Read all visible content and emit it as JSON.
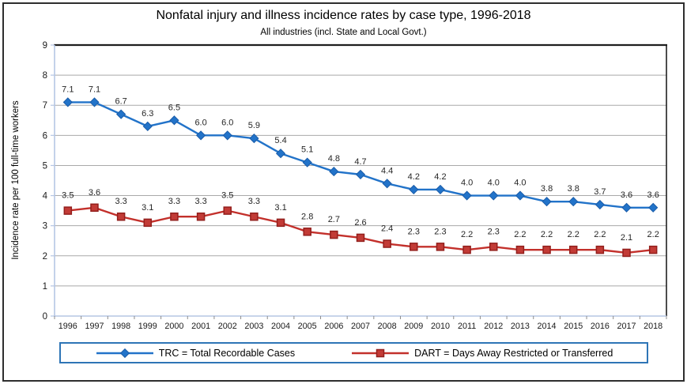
{
  "title": "Nonfatal injury and illness incidence rates by case type, 1996-2018",
  "subtitle": "All industries (incl. State and Local Govt.)",
  "chart_data": {
    "type": "line",
    "categories": [
      "1996",
      "1997",
      "1998",
      "1999",
      "2000",
      "2001",
      "2002",
      "2003",
      "2004",
      "2005",
      "2006",
      "2007",
      "2008",
      "2009",
      "2010",
      "2011",
      "2012",
      "2013",
      "2014",
      "2015",
      "2016",
      "2017",
      "2018"
    ],
    "series": [
      {
        "name": "TRC",
        "legend_label": "TRC = Total Recordable Cases",
        "marker": "diamond",
        "line_color": "#2273C9",
        "marker_fill": "#2273C9",
        "marker_stroke": "#1A5CA8",
        "values": [
          7.1,
          7.1,
          6.7,
          6.3,
          6.5,
          6.0,
          6.0,
          5.9,
          5.4,
          5.1,
          4.8,
          4.7,
          4.4,
          4.2,
          4.2,
          4.0,
          4.0,
          4.0,
          3.8,
          3.8,
          3.7,
          3.6,
          3.6
        ]
      },
      {
        "name": "DART",
        "legend_label": "DART = Days Away Restricted or Transferred",
        "marker": "square",
        "line_color": "#C3302B",
        "marker_fill": "#C23B36",
        "marker_stroke": "#931F1C",
        "values": [
          3.5,
          3.6,
          3.3,
          3.1,
          3.3,
          3.3,
          3.5,
          3.3,
          3.1,
          2.8,
          2.7,
          2.6,
          2.4,
          2.3,
          2.3,
          2.2,
          2.3,
          2.2,
          2.2,
          2.2,
          2.2,
          2.1,
          2.2
        ]
      }
    ],
    "xlabel": "",
    "ylabel": "Incidence rate per 100 full-time workers",
    "ylim": [
      0,
      9
    ],
    "ytick_step": 1,
    "grid": "horizontal",
    "legend_position": "bottom",
    "data_labels": true
  },
  "colors": {
    "gridline": "#A9A9A9",
    "plot_border": "#1F1F1F",
    "axis_line": "#B5C6E4",
    "tick": "#8C8C8C",
    "legend_border": "#2E75B6",
    "frame": "#2E2E2E",
    "background": "#FFFFFF",
    "label_text": "#262626",
    "tick_label_text": "#1A1A1A"
  }
}
